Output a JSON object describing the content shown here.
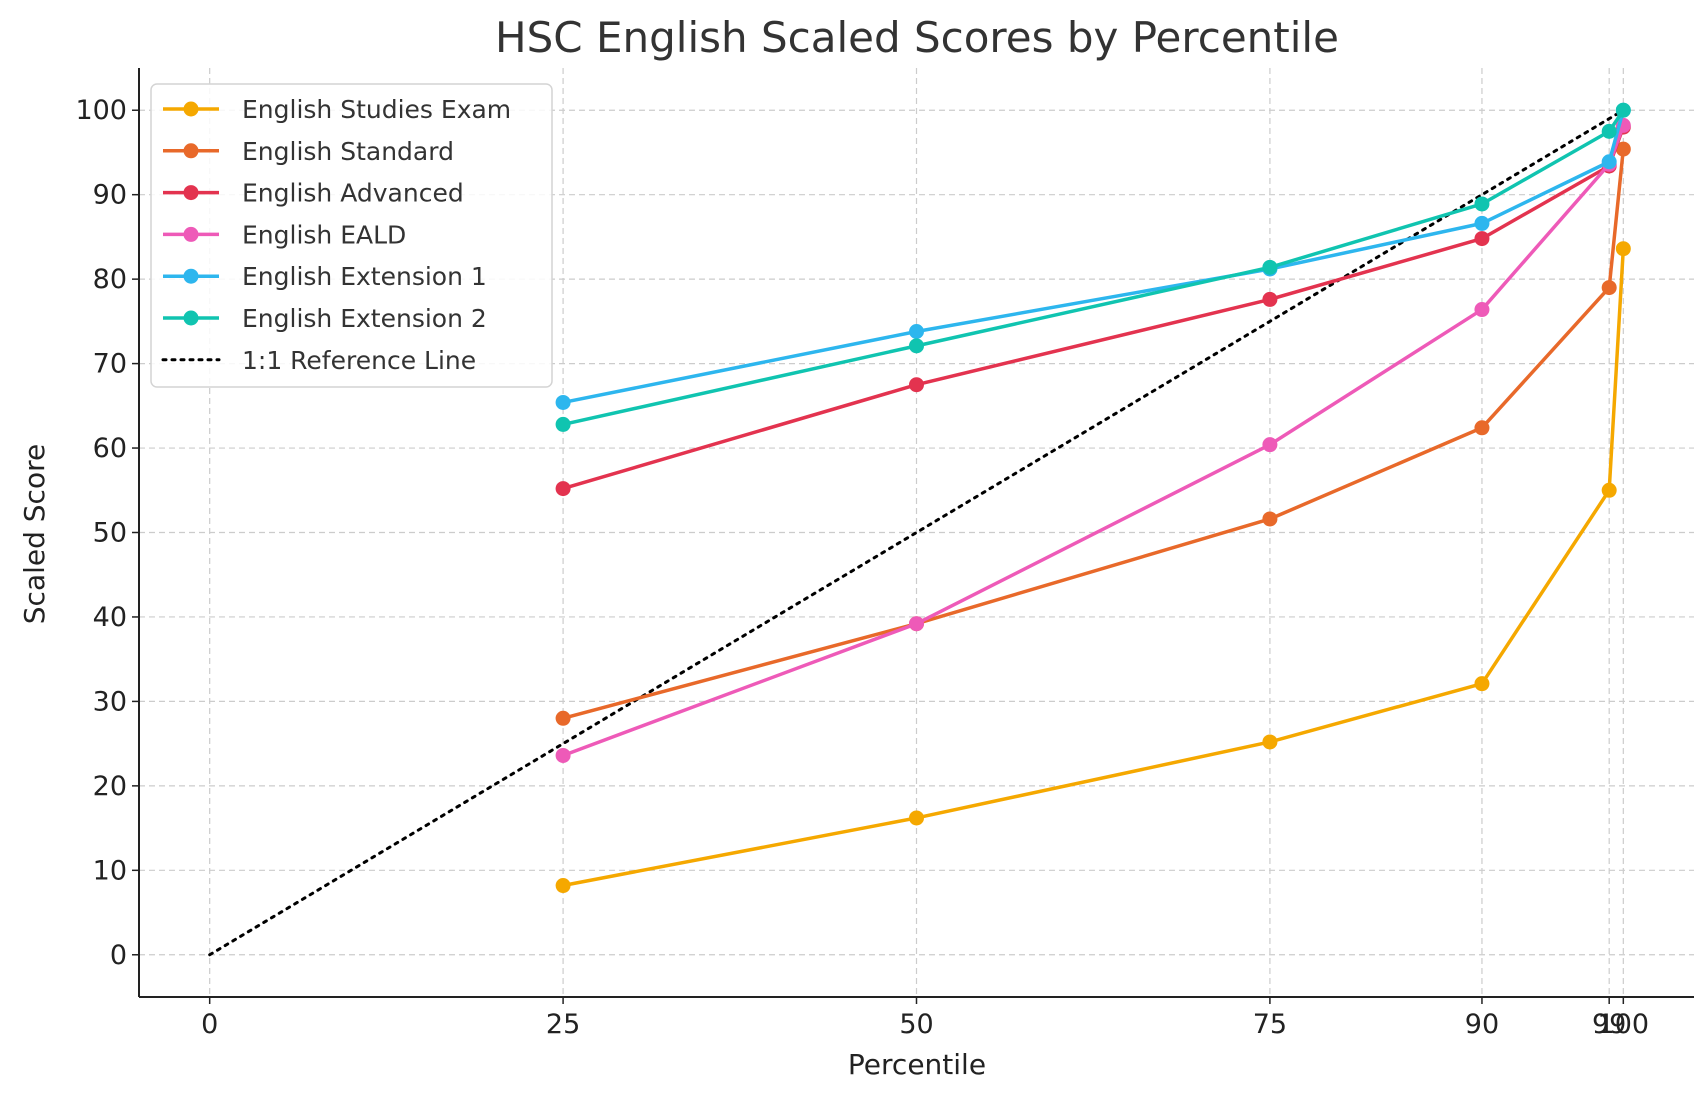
{
  "chart_data": {
    "type": "line",
    "title": "HSC English Scaled Scores by Percentile",
    "xlabel": "Percentile",
    "ylabel": "Scaled Score",
    "x": [
      25,
      50,
      75,
      90,
      99,
      100
    ],
    "xticks": [
      0,
      25,
      50,
      75,
      90,
      99,
      100
    ],
    "yticks": [
      0,
      10,
      20,
      30,
      40,
      50,
      60,
      70,
      80,
      90,
      100
    ],
    "xlim": [
      -5,
      105
    ],
    "ylim": [
      -5,
      105
    ],
    "grid": true,
    "legend_position": "top-left",
    "series": [
      {
        "name": "English Studies Exam",
        "color": "#F5A800",
        "values": [
          8.2,
          16.2,
          25.2,
          32.1,
          55.0,
          83.6
        ]
      },
      {
        "name": "English Standard",
        "color": "#E8692A",
        "values": [
          28.0,
          39.2,
          51.6,
          62.4,
          79.0,
          95.4
        ]
      },
      {
        "name": "English Advanced",
        "color": "#E3334F",
        "values": [
          55.2,
          67.5,
          77.6,
          84.8,
          93.4,
          98.0
        ]
      },
      {
        "name": "English EALD",
        "color": "#EE5AB8",
        "values": [
          23.6,
          39.2,
          60.4,
          76.4,
          93.6,
          98.2
        ]
      },
      {
        "name": "English Extension 1",
        "color": "#2DB6EE",
        "values": [
          65.4,
          73.8,
          81.2,
          86.6,
          93.9,
          100.0
        ]
      },
      {
        "name": "English Extension 2",
        "color": "#10C4B0",
        "values": [
          62.8,
          72.1,
          81.4,
          88.9,
          97.5,
          100.0
        ]
      }
    ],
    "reference_line": {
      "name": "1:1 Reference Line",
      "color": "#000000",
      "x": [
        0,
        100
      ],
      "y": [
        0,
        100
      ]
    }
  }
}
